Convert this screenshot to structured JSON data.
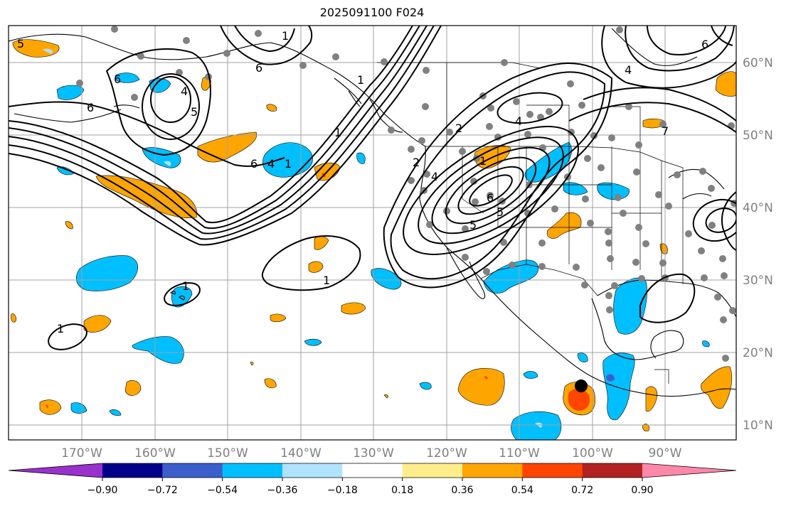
{
  "title": "2025091100 F024",
  "lon_labels": [
    "170°W",
    "160°W",
    "150°W",
    "140°W",
    "130°W",
    "120°W",
    "110°W",
    "100°W",
    "90°W"
  ],
  "lat_labels": [
    "60°N",
    "50°N",
    "40°N",
    "30°N",
    "20°N",
    "10°N"
  ],
  "colorbar": {
    "colors": [
      "#9932cc",
      "#00008b",
      "#3a5fcd",
      "#00bfff",
      "#b0e2ff",
      "#ffffff",
      "#ffec8b",
      "#ffa500",
      "#ff4500",
      "#b22222",
      "#ff88aa"
    ],
    "tick_labels": [
      "−0.90",
      "−0.72",
      "−0.54",
      "−0.36",
      "−0.18",
      "0.18",
      "0.36",
      "0.54",
      "0.72",
      "0.90"
    ]
  },
  "contour_labels": [
    "5",
    "6",
    "6",
    "4",
    "5",
    "6",
    "1",
    "6",
    "4",
    "1",
    "1",
    "1",
    "2",
    "4",
    "1",
    "2",
    "4",
    "5",
    "6",
    "5",
    "1",
    "1",
    "6",
    "7",
    "4",
    "1"
  ],
  "colors": {
    "frame": "#000000",
    "grid": "#a0a0a0",
    "positive": "#ffa500",
    "negative": "#00bfff",
    "station": "#808080"
  }
}
